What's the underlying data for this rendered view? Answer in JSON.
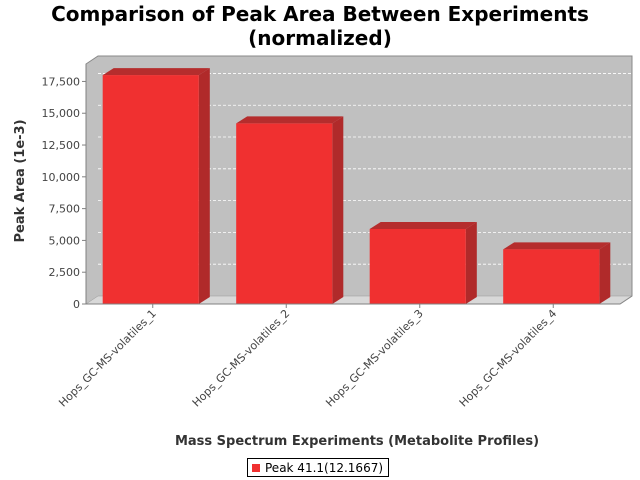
{
  "chart_data": {
    "type": "bar",
    "title_lines": [
      "Comparison of Peak Area Between Experiments",
      "(normalized)"
    ],
    "xlabel": "Mass Spectrum Experiments (Metabolite Profiles)",
    "ylabel": "Peak Area (1e-3)",
    "categories": [
      "Hops_GC-MS-volatiles_1",
      "Hops_GC-MS-volatiles_2",
      "Hops_GC-MS-volatiles_3",
      "Hops_GC-MS-volatiles_4"
    ],
    "series": [
      {
        "name": "Peak 41.1(12.1667)",
        "values": [
          18000,
          14200,
          5900,
          4300
        ],
        "color": "#f03030"
      }
    ],
    "ylim": [
      0,
      19500
    ],
    "yticks": [
      0,
      2500,
      5000,
      7500,
      10000,
      12500,
      15000,
      17500
    ],
    "ytick_labels": [
      "0",
      "2,500",
      "5,000",
      "7,500",
      "10,000",
      "12,500",
      "15,000",
      "17,500"
    ],
    "grid": true,
    "legend_position": "bottom",
    "colors": {
      "plot_background": "#c0c0c0",
      "floor": "#d8d8d8",
      "bar_front": "#f03030",
      "bar_top": "#b52d2d",
      "bar_side": "#b02a2a"
    }
  }
}
